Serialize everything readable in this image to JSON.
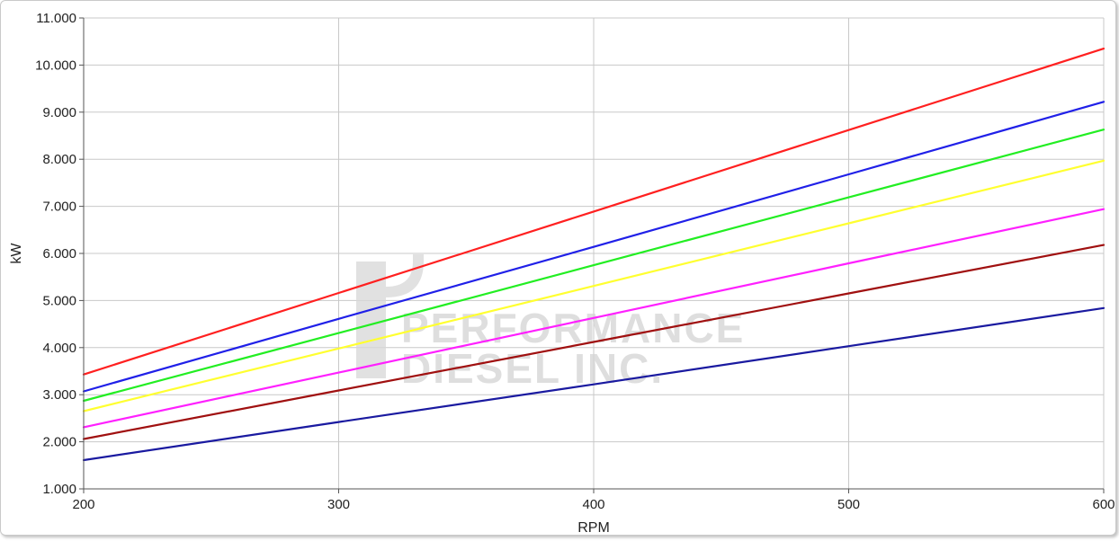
{
  "chart_data": {
    "type": "line",
    "xlabel": "RPM",
    "ylabel": "kW",
    "xlim": [
      200,
      600
    ],
    "ylim": [
      1000,
      11000
    ],
    "x_ticks": [
      200,
      300,
      400,
      500,
      600
    ],
    "y_ticks": [
      1000,
      2000,
      3000,
      4000,
      5000,
      6000,
      7000,
      8000,
      9000,
      10000,
      11000
    ],
    "y_tick_labels": [
      "1.000",
      "2.000",
      "3.000",
      "4.000",
      "5.000",
      "6.000",
      "7.000",
      "8.000",
      "9.000",
      "10.000",
      "11.000"
    ],
    "x_tick_labels": [
      "200",
      "300",
      "400",
      "500",
      "600"
    ],
    "grid": true,
    "legend": "none",
    "series": [
      {
        "color": "#ff2020",
        "x": [
          200,
          300,
          400,
          500,
          600
        ],
        "values": [
          3430,
          5160,
          6890,
          8620,
          10350
        ]
      },
      {
        "color": "#2020e8",
        "x": [
          200,
          300,
          400,
          500,
          600
        ],
        "values": [
          3070,
          4610,
          6140,
          7680,
          9220
        ]
      },
      {
        "color": "#22ee22",
        "x": [
          200,
          300,
          400,
          500,
          600
        ],
        "values": [
          2870,
          4310,
          5750,
          7190,
          8630
        ]
      },
      {
        "color": "#ffff30",
        "x": [
          200,
          300,
          400,
          500,
          600
        ],
        "values": [
          2650,
          3980,
          5310,
          6640,
          7970
        ]
      },
      {
        "color": "#ff20ff",
        "x": [
          200,
          300,
          400,
          500,
          600
        ],
        "values": [
          2310,
          3470,
          4630,
          5790,
          6940
        ]
      },
      {
        "color": "#a01010",
        "x": [
          200,
          300,
          400,
          500,
          600
        ],
        "values": [
          2060,
          3090,
          4120,
          5150,
          6180
        ]
      },
      {
        "color": "#1a1aa0",
        "x": [
          200,
          300,
          400,
          500,
          600
        ],
        "values": [
          1610,
          2420,
          3220,
          4030,
          4840
        ]
      }
    ]
  },
  "watermark": {
    "line1": "PERFORMANCE",
    "line2": "DIESEL INC."
  }
}
